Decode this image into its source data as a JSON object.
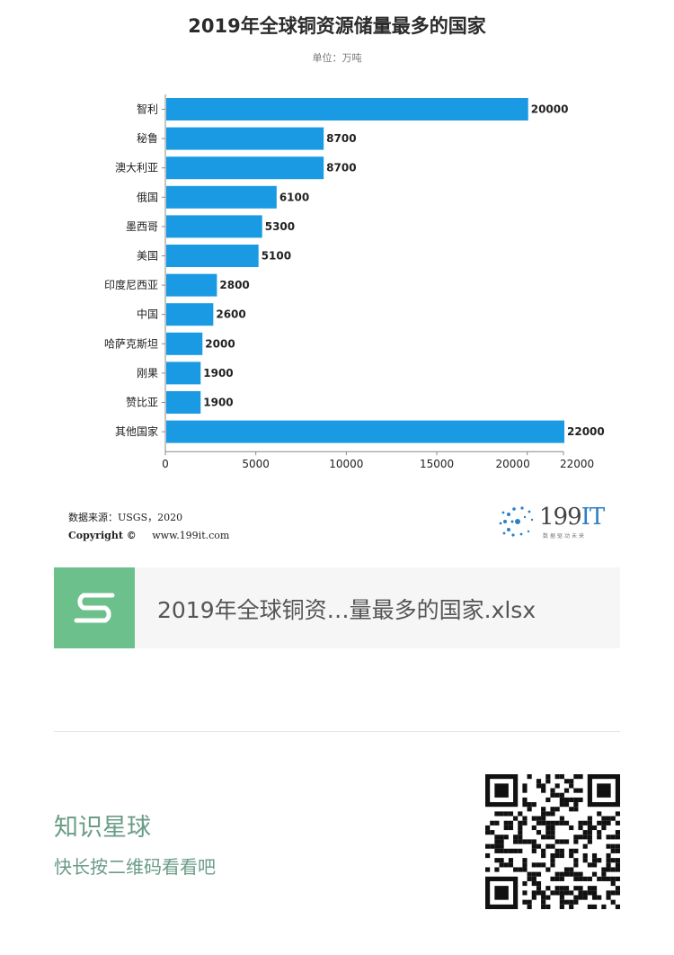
{
  "chart_data": {
    "type": "bar",
    "orientation": "horizontal",
    "title": "2019年全球铜资源储量最多的国家",
    "subtitle": "单位：万吨",
    "categories": [
      "智利",
      "秘鲁",
      "澳大利亚",
      "俄国",
      "墨西哥",
      "美国",
      "印度尼西亚",
      "中国",
      "哈萨克斯坦",
      "刚果",
      "赞比亚",
      "其他国家"
    ],
    "values": [
      20000,
      8700,
      8700,
      6100,
      5300,
      5100,
      2800,
      2600,
      2000,
      1900,
      1900,
      22000
    ],
    "value_labels": [
      "20000",
      "8700",
      "8700",
      "6100",
      "5300",
      "5100",
      "2800",
      "2600",
      "2000",
      "1900",
      "1900",
      "22000"
    ],
    "xlim": [
      0,
      22000
    ],
    "xticks": [
      0,
      5000,
      10000,
      15000,
      20000,
      22000
    ],
    "xtick_labels": [
      "0",
      "5000",
      "10000",
      "15000",
      "20000",
      "22000"
    ],
    "bar_color": "#1a9ae3",
    "grid": false,
    "legend": "none"
  },
  "source": {
    "line": "数据来源：USGS，2020",
    "copyright_label": "Copyright ©",
    "url": "www.199it.com"
  },
  "brand": {
    "name_prefix": "199",
    "name_suffix": "IT",
    "tagline": "数据驱动未来",
    "accent": "#2b7fc7"
  },
  "attachment": {
    "file_name": "2019年全球铜资…量最多的国家.xlsx",
    "icon": "spreadsheet-s-icon",
    "icon_color": "#6cc08b"
  },
  "footer": {
    "title": "知识星球",
    "subtitle": "快长按二维码看看吧",
    "qr": "qr-code-icon"
  }
}
